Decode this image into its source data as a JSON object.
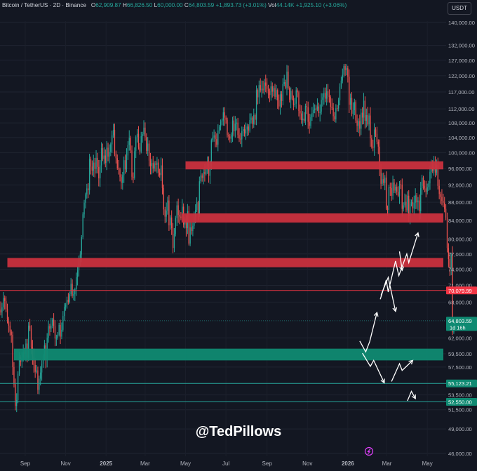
{
  "header": {
    "symbol": "Bitcoin / TetherUS · 2D · Binance",
    "open_label": "O",
    "open": "62,909.87",
    "high_label": "H",
    "high": "66,826.50",
    "low_label": "L",
    "low": "60,000.00",
    "close_label": "C",
    "close": "64,803.59",
    "change": "+1,893.73 (+3.01%)",
    "vol_label": "Vol",
    "vol": "44.14K",
    "vol_change": "+1,925.10 (+3.06%)"
  },
  "currency_button": "USDT",
  "watermark": "@TedPillows",
  "colors": {
    "background": "#131722",
    "up": "#26a69a",
    "down": "#ef5350",
    "resistance_zone": "#c9303e",
    "support_zone": "#0f8a72",
    "price_line_red": "#f23645",
    "price_line_teal": "#0f8a72",
    "arrows": "#ffffff"
  },
  "chart_data": {
    "type": "candlestick",
    "symbol": "Bitcoin / TetherUS",
    "interval": "2D",
    "exchange": "Binance",
    "y_ticks": [
      140000,
      132000,
      127000,
      122000,
      117000,
      112000,
      108000,
      104000,
      100000,
      96000,
      92000,
      88000,
      84000,
      80000,
      77000,
      74000,
      71000,
      68000,
      62000,
      59500,
      57500,
      53500,
      51500,
      49000,
      46000
    ],
    "y_tick_labels": [
      "140,000.00",
      "132,000.00",
      "127,000.00",
      "122,000.00",
      "117,000.00",
      "112,000.00",
      "108,000.00",
      "104,000.00",
      "100,000.00",
      "96,000.00",
      "92,000.00",
      "88,000.00",
      "84,000.00",
      "80,000.00",
      "77,000.00",
      "74,000.00",
      "71,000.00",
      "68,000.00",
      "62,000.00",
      "59,500.00",
      "57,500.00",
      "53,500.00",
      "51,500.00",
      "49,000.00",
      "46,000.00"
    ],
    "x_ticks": [
      "Sep",
      "Nov",
      "2025",
      "Mar",
      "May",
      "Jul",
      "Sep",
      "Nov",
      "2026",
      "Mar",
      "May"
    ],
    "price_labels": [
      {
        "text": "70,079.99",
        "value": 70079.99,
        "style": "red"
      },
      {
        "text": "64,803.59",
        "value": 64803.59,
        "style": "teal",
        "sub": "1d 16h"
      },
      {
        "text": "55,123.21",
        "value": 55123.21,
        "style": "teal"
      },
      {
        "text": "52,550.00",
        "value": 52550,
        "style": "teal"
      }
    ],
    "horizontal_lines": [
      {
        "value": 70079.99,
        "color": "#f23645"
      },
      {
        "value": 64803.59,
        "color": "#26a69a",
        "dotted": true
      },
      {
        "value": 55123.21,
        "color": "#26a69a"
      },
      {
        "value": 52550,
        "color": "#26a69a"
      }
    ],
    "zones": [
      {
        "type": "resistance",
        "low": 95800,
        "high": 97800,
        "from": "2025-05-01"
      },
      {
        "type": "resistance",
        "low": 83500,
        "high": 85500,
        "from": "2025-04-25"
      },
      {
        "type": "resistance",
        "low": 74400,
        "high": 76200,
        "from": "2024-08-05"
      },
      {
        "type": "support",
        "low": 58500,
        "high": 60300,
        "from": "2024-08-15"
      }
    ],
    "candles": {
      "interval_days": 2,
      "start": "2024-06-30",
      "closes": [
        62000,
        62500,
        59800,
        57900,
        57200,
        58600,
        59800,
        61900,
        60500,
        63800,
        65900,
        66800,
        66700,
        66200,
        67100,
        68700,
        68200,
        66800,
        65000,
        64000,
        63000,
        62500,
        57500,
        55000,
        52000,
        52800,
        56500,
        59000,
        58300,
        58900,
        59700,
        59500,
        61100,
        58900,
        64000,
        63500,
        60500,
        59100,
        57800,
        56800,
        57000,
        54200,
        55800,
        56700,
        58000,
        59200,
        60800,
        58600,
        62000,
        63900,
        63500,
        64000,
        65000,
        63900,
        61900,
        62000,
        62500,
        64100,
        62200,
        63300,
        65600,
        67200,
        67500,
        68400,
        68000,
        69400,
        71300,
        69100,
        69400,
        70300,
        72500,
        73800,
        75400,
        76900,
        80400,
        85300,
        87900,
        89800,
        91200,
        90800,
        98400,
        96500,
        95500,
        97500,
        95900,
        98700,
        96400,
        93600,
        96800,
        101200,
        98400,
        99300,
        97400,
        101300,
        99000,
        100200,
        102200,
        104600,
        106100,
        99800,
        98600,
        96100,
        95800,
        93900,
        92500,
        94400,
        98100,
        95800,
        99300,
        102000,
        103900,
        100600,
        94000,
        93700,
        100400,
        104100,
        105000,
        101400,
        100300,
        104400,
        104900,
        106700,
        104100,
        100500,
        102400,
        98000,
        96600,
        97400,
        96000,
        97300,
        96900,
        97500,
        95000,
        94400,
        96800,
        91300,
        86400,
        84800,
        86100,
        88400,
        82900,
        84600,
        82300,
        78200,
        81100,
        84500,
        87300,
        85200,
        84800,
        84500,
        87000,
        83100,
        84300,
        82300,
        86000,
        79100,
        82500,
        81700,
        82800,
        84700,
        86300,
        88000,
        85100,
        92900,
        94300,
        93700,
        95100,
        94700,
        96800,
        97200,
        94200,
        96600,
        103300,
        104000,
        104600,
        103600,
        102100,
        105900,
        107000,
        108300,
        108700,
        111000,
        109500,
        108900,
        104700,
        104300,
        103700,
        104800,
        108700,
        105700,
        107800,
        108100,
        104700,
        103700,
        103500,
        105700,
        106300,
        105100,
        106200,
        107000,
        105900,
        108800,
        109500,
        107700,
        110200,
        108900,
        117600,
        115400,
        119100,
        117500,
        118000,
        117500,
        119900,
        118900,
        117900,
        117200,
        116100,
        118700,
        117100,
        118200,
        115500,
        117600,
        114500,
        112700,
        116300,
        114300,
        119400,
        120000,
        118300,
        123300,
        118200,
        114700,
        117300,
        115000,
        113200,
        113500,
        117500,
        116900,
        111400,
        110700,
        108800,
        109200,
        108500,
        112800,
        112500,
        108300,
        107200,
        109600,
        110800,
        111700,
        112100,
        111800,
        112700,
        110800,
        111200,
        114600,
        115400,
        116700,
        115000,
        117200,
        115900,
        115500,
        112600,
        112300,
        109900,
        109000,
        112200,
        112100,
        114500,
        118600,
        120500,
        122300,
        125100,
        123800,
        124500,
        121700,
        113200,
        115200,
        110600,
        111600,
        114000,
        108700,
        107200,
        108500,
        106400,
        110900,
        109500,
        114400,
        108600,
        110200,
        107600,
        110100,
        103800,
        101600,
        101300,
        106200,
        105000,
        102900,
        101600,
        95900,
        92300,
        93400,
        92500,
        93800,
        86600,
        86300,
        91500,
        91300,
        89500,
        92600,
        90700,
        91600,
        90400,
        89500,
        92200,
        92100,
        86500,
        87300,
        88100,
        86200,
        89500,
        84900,
        87700,
        88000,
        86600,
        87900,
        89600,
        88000,
        88400,
        86000,
        91300,
        93800,
        91800,
        91200,
        90400,
        91500,
        92400,
        95200,
        96500,
        95500,
        97300,
        95000,
        96900,
        91800,
        89900,
        89200,
        88300,
        87900,
        86500,
        84600,
        78200,
        76000,
        74300,
        76900,
        62900,
        64803
      ]
    }
  }
}
